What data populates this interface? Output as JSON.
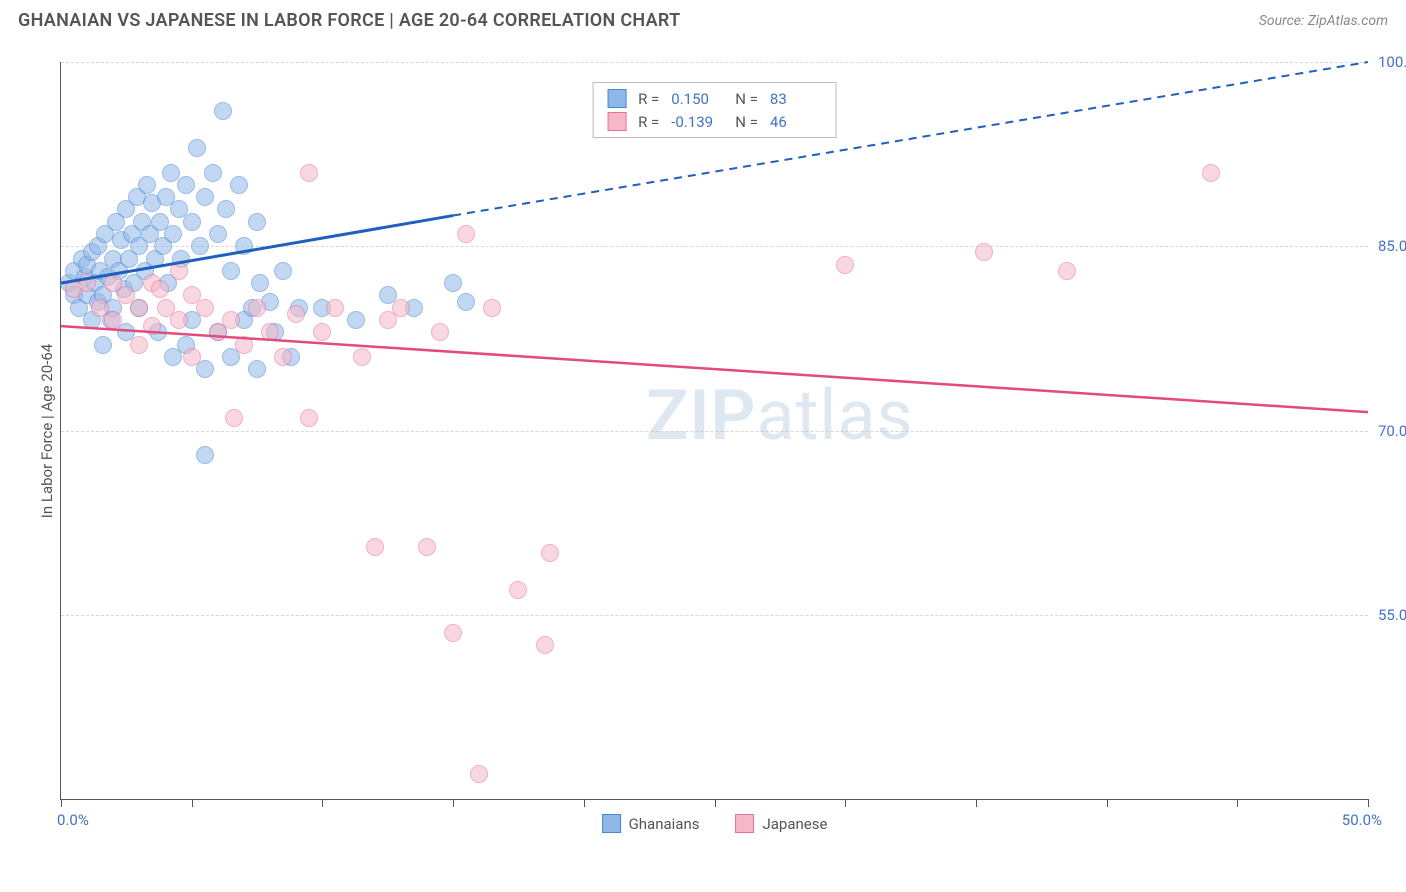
{
  "header": {
    "title": "GHANAIAN VS JAPANESE IN LABOR FORCE | AGE 20-64 CORRELATION CHART",
    "source": "Source: ZipAtlas.com"
  },
  "chart": {
    "type": "scatter",
    "background_color": "#ffffff",
    "grid_color": "#d8d8d8",
    "axis_color": "#555555",
    "label_color": "#555555",
    "tick_label_color": "#4472c4",
    "label_fontsize": 15,
    "y_axis_label": "In Labor Force | Age 20-64",
    "x_axis_label": "",
    "xlim": [
      0,
      50
    ],
    "ylim": [
      40,
      100
    ],
    "x_ticks": [
      0,
      5,
      10,
      15,
      20,
      25,
      30,
      35,
      40,
      45,
      50
    ],
    "x_tick_labels_shown": {
      "min": "0.0%",
      "max": "50.0%"
    },
    "y_grid": [
      {
        "value": 100.0,
        "label": "100.0%"
      },
      {
        "value": 85.0,
        "label": "85.0%"
      },
      {
        "value": 70.0,
        "label": "70.0%"
      },
      {
        "value": 55.0,
        "label": "55.0%"
      }
    ],
    "marker_radius": 9,
    "marker_opacity": 0.55,
    "marker_border_width": 1,
    "watermark": {
      "zip": "ZIP",
      "atlas": "atlas",
      "fontsize": 70,
      "opacity": 0.4,
      "color": "#b0c4de"
    },
    "series": [
      {
        "name": "Ghanaians",
        "fill_color": "#8fb8e9",
        "stroke_color": "#4a86d1",
        "stats": {
          "R": "0.150",
          "N": "83"
        },
        "trend": {
          "color": "#1f5fbf",
          "solid_width": 3,
          "dash_width": 2,
          "dash_pattern": "8,6",
          "start": {
            "x": 0,
            "y": 82.0
          },
          "solid_end": {
            "x": 15.0,
            "y": 87.5
          },
          "dash_end": {
            "x": 50.0,
            "y": 100.0
          }
        },
        "points": [
          {
            "x": 0.3,
            "y": 82
          },
          {
            "x": 0.5,
            "y": 81
          },
          {
            "x": 0.5,
            "y": 83
          },
          {
            "x": 0.7,
            "y": 80
          },
          {
            "x": 0.8,
            "y": 84
          },
          {
            "x": 0.9,
            "y": 82.5
          },
          {
            "x": 1.0,
            "y": 81
          },
          {
            "x": 1.0,
            "y": 83.5
          },
          {
            "x": 1.2,
            "y": 79
          },
          {
            "x": 1.2,
            "y": 84.5
          },
          {
            "x": 1.3,
            "y": 82
          },
          {
            "x": 1.4,
            "y": 80.5
          },
          {
            "x": 1.4,
            "y": 85
          },
          {
            "x": 1.5,
            "y": 83
          },
          {
            "x": 1.6,
            "y": 81
          },
          {
            "x": 1.6,
            "y": 77
          },
          {
            "x": 1.7,
            "y": 86
          },
          {
            "x": 1.8,
            "y": 82.5
          },
          {
            "x": 1.9,
            "y": 79
          },
          {
            "x": 2.0,
            "y": 84
          },
          {
            "x": 2.0,
            "y": 80
          },
          {
            "x": 2.1,
            "y": 87
          },
          {
            "x": 2.2,
            "y": 83
          },
          {
            "x": 2.3,
            "y": 85.5
          },
          {
            "x": 2.4,
            "y": 81.5
          },
          {
            "x": 2.5,
            "y": 88
          },
          {
            "x": 2.5,
            "y": 78
          },
          {
            "x": 2.6,
            "y": 84
          },
          {
            "x": 2.7,
            "y": 86
          },
          {
            "x": 2.8,
            "y": 82
          },
          {
            "x": 2.9,
            "y": 89
          },
          {
            "x": 3.0,
            "y": 85
          },
          {
            "x": 3.0,
            "y": 80
          },
          {
            "x": 3.1,
            "y": 87
          },
          {
            "x": 3.2,
            "y": 83
          },
          {
            "x": 3.3,
            "y": 90
          },
          {
            "x": 3.4,
            "y": 86
          },
          {
            "x": 3.5,
            "y": 88.5
          },
          {
            "x": 3.6,
            "y": 84
          },
          {
            "x": 3.7,
            "y": 78
          },
          {
            "x": 3.8,
            "y": 87
          },
          {
            "x": 3.9,
            "y": 85
          },
          {
            "x": 4.0,
            "y": 89
          },
          {
            "x": 4.1,
            "y": 82
          },
          {
            "x": 4.2,
            "y": 91
          },
          {
            "x": 4.3,
            "y": 86
          },
          {
            "x": 4.3,
            "y": 76
          },
          {
            "x": 4.5,
            "y": 88
          },
          {
            "x": 4.6,
            "y": 84
          },
          {
            "x": 4.8,
            "y": 90
          },
          {
            "x": 4.8,
            "y": 77
          },
          {
            "x": 5.0,
            "y": 87
          },
          {
            "x": 5.0,
            "y": 79
          },
          {
            "x": 5.2,
            "y": 93
          },
          {
            "x": 5.3,
            "y": 85
          },
          {
            "x": 5.5,
            "y": 75
          },
          {
            "x": 5.5,
            "y": 89
          },
          {
            "x": 5.5,
            "y": 68
          },
          {
            "x": 5.8,
            "y": 91
          },
          {
            "x": 6.0,
            "y": 86
          },
          {
            "x": 6.0,
            "y": 78
          },
          {
            "x": 6.2,
            "y": 96
          },
          {
            "x": 6.3,
            "y": 88
          },
          {
            "x": 6.5,
            "y": 83
          },
          {
            "x": 6.5,
            "y": 76
          },
          {
            "x": 6.8,
            "y": 90
          },
          {
            "x": 7.0,
            "y": 85
          },
          {
            "x": 7.0,
            "y": 79
          },
          {
            "x": 7.3,
            "y": 80
          },
          {
            "x": 7.5,
            "y": 87
          },
          {
            "x": 7.5,
            "y": 75
          },
          {
            "x": 7.6,
            "y": 82
          },
          {
            "x": 8.0,
            "y": 80.5
          },
          {
            "x": 8.2,
            "y": 78
          },
          {
            "x": 8.5,
            "y": 83
          },
          {
            "x": 8.8,
            "y": 76
          },
          {
            "x": 9.1,
            "y": 80
          },
          {
            "x": 10.0,
            "y": 80
          },
          {
            "x": 11.3,
            "y": 79
          },
          {
            "x": 12.5,
            "y": 81
          },
          {
            "x": 13.5,
            "y": 80
          },
          {
            "x": 15.0,
            "y": 82
          },
          {
            "x": 15.5,
            "y": 80.5
          }
        ]
      },
      {
        "name": "Japanese",
        "fill_color": "#f5b8c8",
        "stroke_color": "#e77099",
        "stats": {
          "R": "-0.139",
          "N": "46"
        },
        "trend": {
          "color": "#e34a7d",
          "solid_width": 2.5,
          "dash_width": 0,
          "dash_pattern": "",
          "start": {
            "x": 0,
            "y": 78.5
          },
          "solid_end": {
            "x": 50.0,
            "y": 71.5
          },
          "dash_end": null
        },
        "points": [
          {
            "x": 0.5,
            "y": 81.5
          },
          {
            "x": 1.0,
            "y": 82
          },
          {
            "x": 1.5,
            "y": 80
          },
          {
            "x": 2.0,
            "y": 82
          },
          {
            "x": 2.0,
            "y": 79
          },
          {
            "x": 2.5,
            "y": 81
          },
          {
            "x": 3.0,
            "y": 80
          },
          {
            "x": 3.0,
            "y": 77
          },
          {
            "x": 3.5,
            "y": 82
          },
          {
            "x": 3.5,
            "y": 78.5
          },
          {
            "x": 4.0,
            "y": 80
          },
          {
            "x": 4.5,
            "y": 79
          },
          {
            "x": 5.0,
            "y": 81
          },
          {
            "x": 5.0,
            "y": 76
          },
          {
            "x": 5.5,
            "y": 80
          },
          {
            "x": 6.0,
            "y": 78
          },
          {
            "x": 6.5,
            "y": 79
          },
          {
            "x": 6.6,
            "y": 71
          },
          {
            "x": 7.0,
            "y": 77
          },
          {
            "x": 7.5,
            "y": 80
          },
          {
            "x": 8.0,
            "y": 78
          },
          {
            "x": 8.5,
            "y": 76
          },
          {
            "x": 9.0,
            "y": 79.5
          },
          {
            "x": 9.5,
            "y": 91
          },
          {
            "x": 9.5,
            "y": 71
          },
          {
            "x": 10.0,
            "y": 78
          },
          {
            "x": 10.5,
            "y": 80
          },
          {
            "x": 11.5,
            "y": 76
          },
          {
            "x": 12.0,
            "y": 60.5
          },
          {
            "x": 12.5,
            "y": 79
          },
          {
            "x": 13.0,
            "y": 80
          },
          {
            "x": 14.0,
            "y": 60.5
          },
          {
            "x": 14.5,
            "y": 78
          },
          {
            "x": 15.0,
            "y": 53.5
          },
          {
            "x": 15.5,
            "y": 86
          },
          {
            "x": 16.0,
            "y": 42
          },
          {
            "x": 16.5,
            "y": 80
          },
          {
            "x": 17.5,
            "y": 57
          },
          {
            "x": 18.5,
            "y": 52.5
          },
          {
            "x": 18.7,
            "y": 60
          },
          {
            "x": 30.0,
            "y": 83.5
          },
          {
            "x": 35.3,
            "y": 84.5
          },
          {
            "x": 38.5,
            "y": 83
          },
          {
            "x": 44.0,
            "y": 91
          },
          {
            "x": 4.5,
            "y": 83
          },
          {
            "x": 3.8,
            "y": 81.5
          }
        ]
      }
    ],
    "stats_box": {
      "border_color": "#bbbbbb",
      "background": "#ffffff",
      "label_color": "#555555",
      "value_color": "#4472c4",
      "fontsize": 15
    },
    "bottom_legend": {
      "fontsize": 15,
      "color": "#555555"
    }
  }
}
